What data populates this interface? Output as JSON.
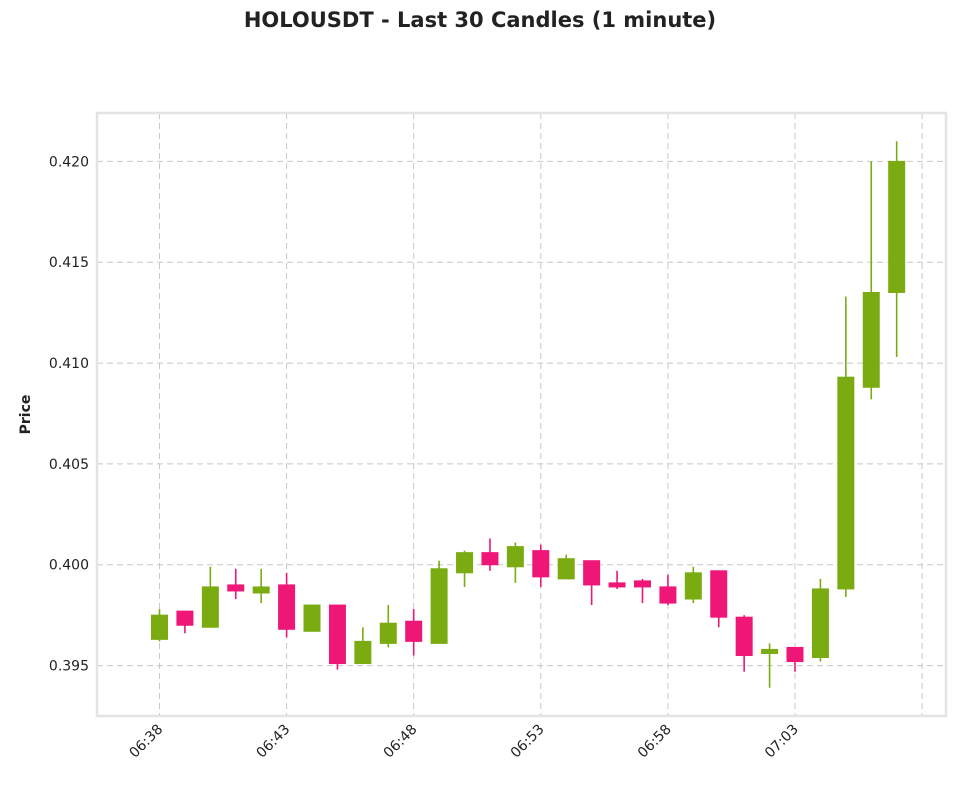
{
  "chart_data": {
    "type": "candlestick",
    "title": "HOLOUSDT - Last 30 Candles (1 minute)",
    "ylabel": "Price",
    "xlabel": "",
    "ylim": [
      0.3925,
      0.4224
    ],
    "y_ticks": [
      "0.395",
      "0.400",
      "0.405",
      "0.410",
      "0.415",
      "0.420"
    ],
    "x_ticks": [
      "06:38",
      "06:43",
      "06:48",
      "06:53",
      "06:58",
      "07:03",
      ""
    ],
    "grid": true,
    "colors": {
      "up": "#7aac12",
      "down": "#ee1677",
      "grid": "#c8c8c8",
      "frame": "#e3e3e3"
    },
    "candles": [
      {
        "time": "06:38",
        "open": 0.3963,
        "high": 0.3978,
        "low": 0.3962,
        "close": 0.3975
      },
      {
        "time": "06:39",
        "open": 0.3977,
        "high": 0.3977,
        "low": 0.3966,
        "close": 0.397
      },
      {
        "time": "06:40",
        "open": 0.3969,
        "high": 0.3999,
        "low": 0.3969,
        "close": 0.3989
      },
      {
        "time": "06:41",
        "open": 0.399,
        "high": 0.3998,
        "low": 0.3983,
        "close": 0.3987
      },
      {
        "time": "06:42",
        "open": 0.3986,
        "high": 0.3998,
        "low": 0.3981,
        "close": 0.3989
      },
      {
        "time": "06:43",
        "open": 0.399,
        "high": 0.3996,
        "low": 0.3964,
        "close": 0.3968
      },
      {
        "time": "06:44",
        "open": 0.3967,
        "high": 0.398,
        "low": 0.3967,
        "close": 0.398
      },
      {
        "time": "06:45",
        "open": 0.398,
        "high": 0.398,
        "low": 0.3948,
        "close": 0.3951
      },
      {
        "time": "06:46",
        "open": 0.3951,
        "high": 0.3969,
        "low": 0.3951,
        "close": 0.3962
      },
      {
        "time": "06:47",
        "open": 0.3961,
        "high": 0.398,
        "low": 0.3959,
        "close": 0.3971
      },
      {
        "time": "06:48",
        "open": 0.3972,
        "high": 0.3978,
        "low": 0.3955,
        "close": 0.3962
      },
      {
        "time": "06:49",
        "open": 0.3961,
        "high": 0.4002,
        "low": 0.3961,
        "close": 0.3998
      },
      {
        "time": "06:50",
        "open": 0.3996,
        "high": 0.4007,
        "low": 0.3989,
        "close": 0.4006
      },
      {
        "time": "06:51",
        "open": 0.4006,
        "high": 0.4013,
        "low": 0.3997,
        "close": 0.4
      },
      {
        "time": "06:52",
        "open": 0.3999,
        "high": 0.4011,
        "low": 0.3991,
        "close": 0.4009
      },
      {
        "time": "06:53",
        "open": 0.4007,
        "high": 0.401,
        "low": 0.3989,
        "close": 0.3994
      },
      {
        "time": "06:54",
        "open": 0.3993,
        "high": 0.4005,
        "low": 0.3993,
        "close": 0.4003
      },
      {
        "time": "06:55",
        "open": 0.4002,
        "high": 0.4002,
        "low": 0.398,
        "close": 0.399
      },
      {
        "time": "06:56",
        "open": 0.3991,
        "high": 0.3997,
        "low": 0.3988,
        "close": 0.3989
      },
      {
        "time": "06:57",
        "open": 0.3992,
        "high": 0.3993,
        "low": 0.3981,
        "close": 0.3989
      },
      {
        "time": "06:58",
        "open": 0.3989,
        "high": 0.3995,
        "low": 0.398,
        "close": 0.3981
      },
      {
        "time": "06:59",
        "open": 0.3983,
        "high": 0.3999,
        "low": 0.3981,
        "close": 0.3996
      },
      {
        "time": "07:00",
        "open": 0.3997,
        "high": 0.3997,
        "low": 0.3969,
        "close": 0.3974
      },
      {
        "time": "07:01",
        "open": 0.3974,
        "high": 0.3975,
        "low": 0.3947,
        "close": 0.3955
      },
      {
        "time": "07:02",
        "open": 0.3956,
        "high": 0.3961,
        "low": 0.3939,
        "close": 0.3958
      },
      {
        "time": "07:03",
        "open": 0.3959,
        "high": 0.3959,
        "low": 0.3947,
        "close": 0.3952
      },
      {
        "time": "07:04",
        "open": 0.3954,
        "high": 0.3993,
        "low": 0.3952,
        "close": 0.3988
      },
      {
        "time": "07:05",
        "open": 0.3988,
        "high": 0.4133,
        "low": 0.3984,
        "close": 0.4093
      },
      {
        "time": "07:06",
        "open": 0.4088,
        "high": 0.42,
        "low": 0.4082,
        "close": 0.4135
      },
      {
        "time": "07:07",
        "open": 0.4135,
        "high": 0.421,
        "low": 0.4103,
        "close": 0.42
      }
    ]
  }
}
